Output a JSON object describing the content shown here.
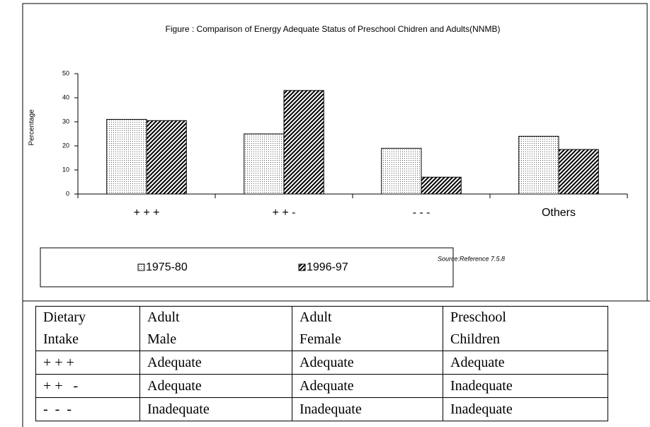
{
  "chart_data": {
    "type": "bar",
    "title": "Figure : Comparison of Energy Adequate Status of Preschool Chidren and Adults(NNMB)",
    "y_label": "Percentage",
    "source": "Source:Reference 7.5.8",
    "categories": [
      "+ + +",
      "+ + -",
      "- - -",
      "Others"
    ],
    "series": [
      {
        "name": "1975-80",
        "pattern": "dots",
        "color": "#000000",
        "values": [
          31,
          25,
          19,
          24
        ]
      },
      {
        "name": "1996-97",
        "pattern": "hatch",
        "color": "#000000",
        "values": [
          30.5,
          43,
          7,
          18.5
        ]
      }
    ],
    "ylim": [
      0,
      50
    ],
    "yticks": [
      0,
      10,
      20,
      30,
      40,
      50
    ],
    "grid": false,
    "legend": "bottom"
  },
  "table": {
    "header": [
      "Dietary Intake",
      "Adult Male",
      "Adult Female",
      "Preschool Children"
    ],
    "rows": [
      [
        "+ + +",
        "Adequate",
        "Adequate",
        "Adequate"
      ],
      [
        "+ +   -",
        "Adequate",
        "Adequate",
        "Inadequate"
      ],
      [
        "-  -  -",
        "Inadequate",
        "Inadequate",
        "Inadequate"
      ]
    ]
  }
}
